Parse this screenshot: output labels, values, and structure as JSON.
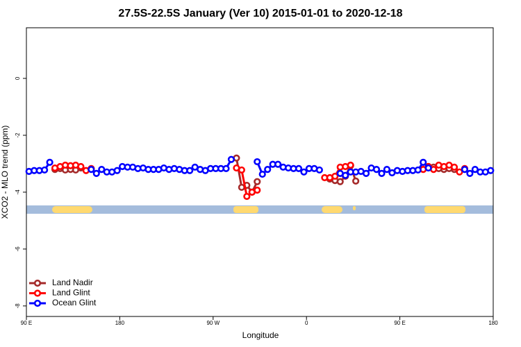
{
  "chart_data": {
    "type": "line",
    "title": "27.5S-22.5S January (Ver 10)   2015-01-01 to 2020-12-18",
    "x_label": "Longitude",
    "y_label": "XCO2 - MLO trend (ppm)",
    "x": [
      92.5,
      97.5,
      102.5,
      107.5,
      112.5,
      117.5,
      122.5,
      127.5,
      132.5,
      137.5,
      142.5,
      147.5,
      152.5,
      157.5,
      162.5,
      167.5,
      172.5,
      177.5,
      182.5,
      187.5,
      192.5,
      197.5,
      202.5,
      207.5,
      212.5,
      217.5,
      222.5,
      227.5,
      232.5,
      237.5,
      242.5,
      247.5,
      252.5,
      257.5,
      262.5,
      267.5,
      272.5,
      277.5,
      282.5,
      287.5,
      292.5,
      297.5,
      302.5,
      307.5,
      312.5,
      317.5,
      322.5,
      327.5,
      332.5,
      337.5,
      342.5,
      347.5,
      352.5,
      357.5,
      362.5,
      367.5,
      372.5,
      377.5,
      382.5,
      387.5,
      392.5,
      397.5,
      402.5,
      407.5,
      412.5,
      417.5,
      422.5,
      427.5,
      432.5,
      437.5,
      442.5,
      447.5,
      452.5,
      457.5,
      462.5,
      467.5,
      472.5,
      477.5,
      482.5,
      487.5,
      492.5,
      497.5,
      502.5,
      507.5,
      512.5,
      517.5,
      522.5,
      527.5,
      532.5,
      537.5
    ],
    "series": [
      {
        "name": "Land Nadir",
        "color": "#a52a2a",
        "values": [
          null,
          null,
          null,
          null,
          null,
          -3.2,
          -3.17,
          -3.22,
          -3.2,
          -3.22,
          -3.15,
          null,
          null,
          null,
          null,
          null,
          null,
          null,
          null,
          null,
          null,
          null,
          null,
          null,
          null,
          null,
          null,
          null,
          null,
          null,
          null,
          null,
          null,
          null,
          null,
          null,
          null,
          null,
          null,
          null,
          -2.8,
          -3.83,
          -3.76,
          -4.0,
          -3.63,
          null,
          null,
          null,
          null,
          null,
          null,
          null,
          null,
          null,
          null,
          null,
          null,
          null,
          -3.54,
          -3.59,
          -3.63,
          -3.44,
          -3.07,
          -3.61,
          null,
          null,
          null,
          null,
          null,
          null,
          null,
          null,
          null,
          null,
          null,
          null,
          null,
          -3.1,
          -3.12,
          -3.17,
          -3.2,
          -3.17,
          -3.2,
          null,
          null,
          null,
          null,
          null,
          null,
          null
        ]
      },
      {
        "name": "Land Glint",
        "color": "#ff0000",
        "values": [
          null,
          null,
          null,
          null,
          null,
          -3.15,
          -3.1,
          -3.05,
          -3.07,
          -3.05,
          -3.1,
          -3.24,
          -3.17,
          null,
          null,
          null,
          null,
          null,
          null,
          null,
          null,
          null,
          null,
          null,
          null,
          null,
          null,
          null,
          null,
          null,
          null,
          null,
          null,
          null,
          null,
          null,
          null,
          null,
          null,
          null,
          -3.15,
          -3.22,
          -4.15,
          -4.0,
          -3.93,
          null,
          null,
          null,
          null,
          null,
          null,
          null,
          null,
          null,
          null,
          null,
          null,
          -3.49,
          -3.49,
          -3.44,
          -3.12,
          -3.1,
          -3.05,
          null,
          null,
          null,
          null,
          null,
          null,
          null,
          null,
          null,
          null,
          null,
          null,
          null,
          -3.2,
          -3.1,
          -3.2,
          -3.05,
          -3.1,
          -3.05,
          -3.12,
          -3.29,
          -3.17,
          null,
          null,
          null,
          null,
          null
        ]
      },
      {
        "name": "Ocean Glint",
        "color": "#0000ff",
        "values": [
          -3.27,
          -3.24,
          -3.24,
          -3.22,
          -2.95,
          null,
          null,
          null,
          null,
          null,
          null,
          null,
          -3.2,
          -3.34,
          -3.2,
          -3.29,
          -3.29,
          -3.24,
          -3.1,
          -3.12,
          -3.12,
          -3.17,
          -3.15,
          -3.2,
          -3.2,
          -3.2,
          -3.15,
          -3.2,
          -3.17,
          -3.2,
          -3.24,
          -3.24,
          -3.12,
          -3.2,
          -3.24,
          -3.17,
          -3.17,
          -3.17,
          -3.17,
          -2.85,
          null,
          null,
          null,
          null,
          -2.93,
          -3.37,
          -3.2,
          -3.02,
          -3.02,
          -3.12,
          -3.15,
          -3.17,
          -3.17,
          -3.29,
          -3.17,
          -3.17,
          -3.22,
          null,
          null,
          null,
          -3.34,
          -3.41,
          -3.29,
          -3.29,
          -3.27,
          -3.34,
          -3.15,
          -3.2,
          -3.34,
          -3.2,
          -3.32,
          -3.24,
          -3.27,
          -3.24,
          -3.24,
          -3.22,
          -2.95,
          -3.15,
          null,
          null,
          null,
          null,
          null,
          null,
          -3.2,
          -3.34,
          -3.2,
          -3.29,
          -3.29,
          -3.24
        ]
      }
    ],
    "xlim": [
      90,
      540
    ],
    "xticks": [
      {
        "value": 90,
        "label": "90 E"
      },
      {
        "value": 180,
        "label": "180"
      },
      {
        "value": 270,
        "label": "90 W"
      },
      {
        "value": 360,
        "label": "0"
      },
      {
        "value": 450,
        "label": "90 E"
      },
      {
        "value": 540,
        "label": "180"
      }
    ],
    "ylim": [
      -8.37,
      1.78
    ],
    "yticks": [
      0,
      -2,
      -4,
      -6,
      -8
    ],
    "legend": "bottom-left"
  }
}
